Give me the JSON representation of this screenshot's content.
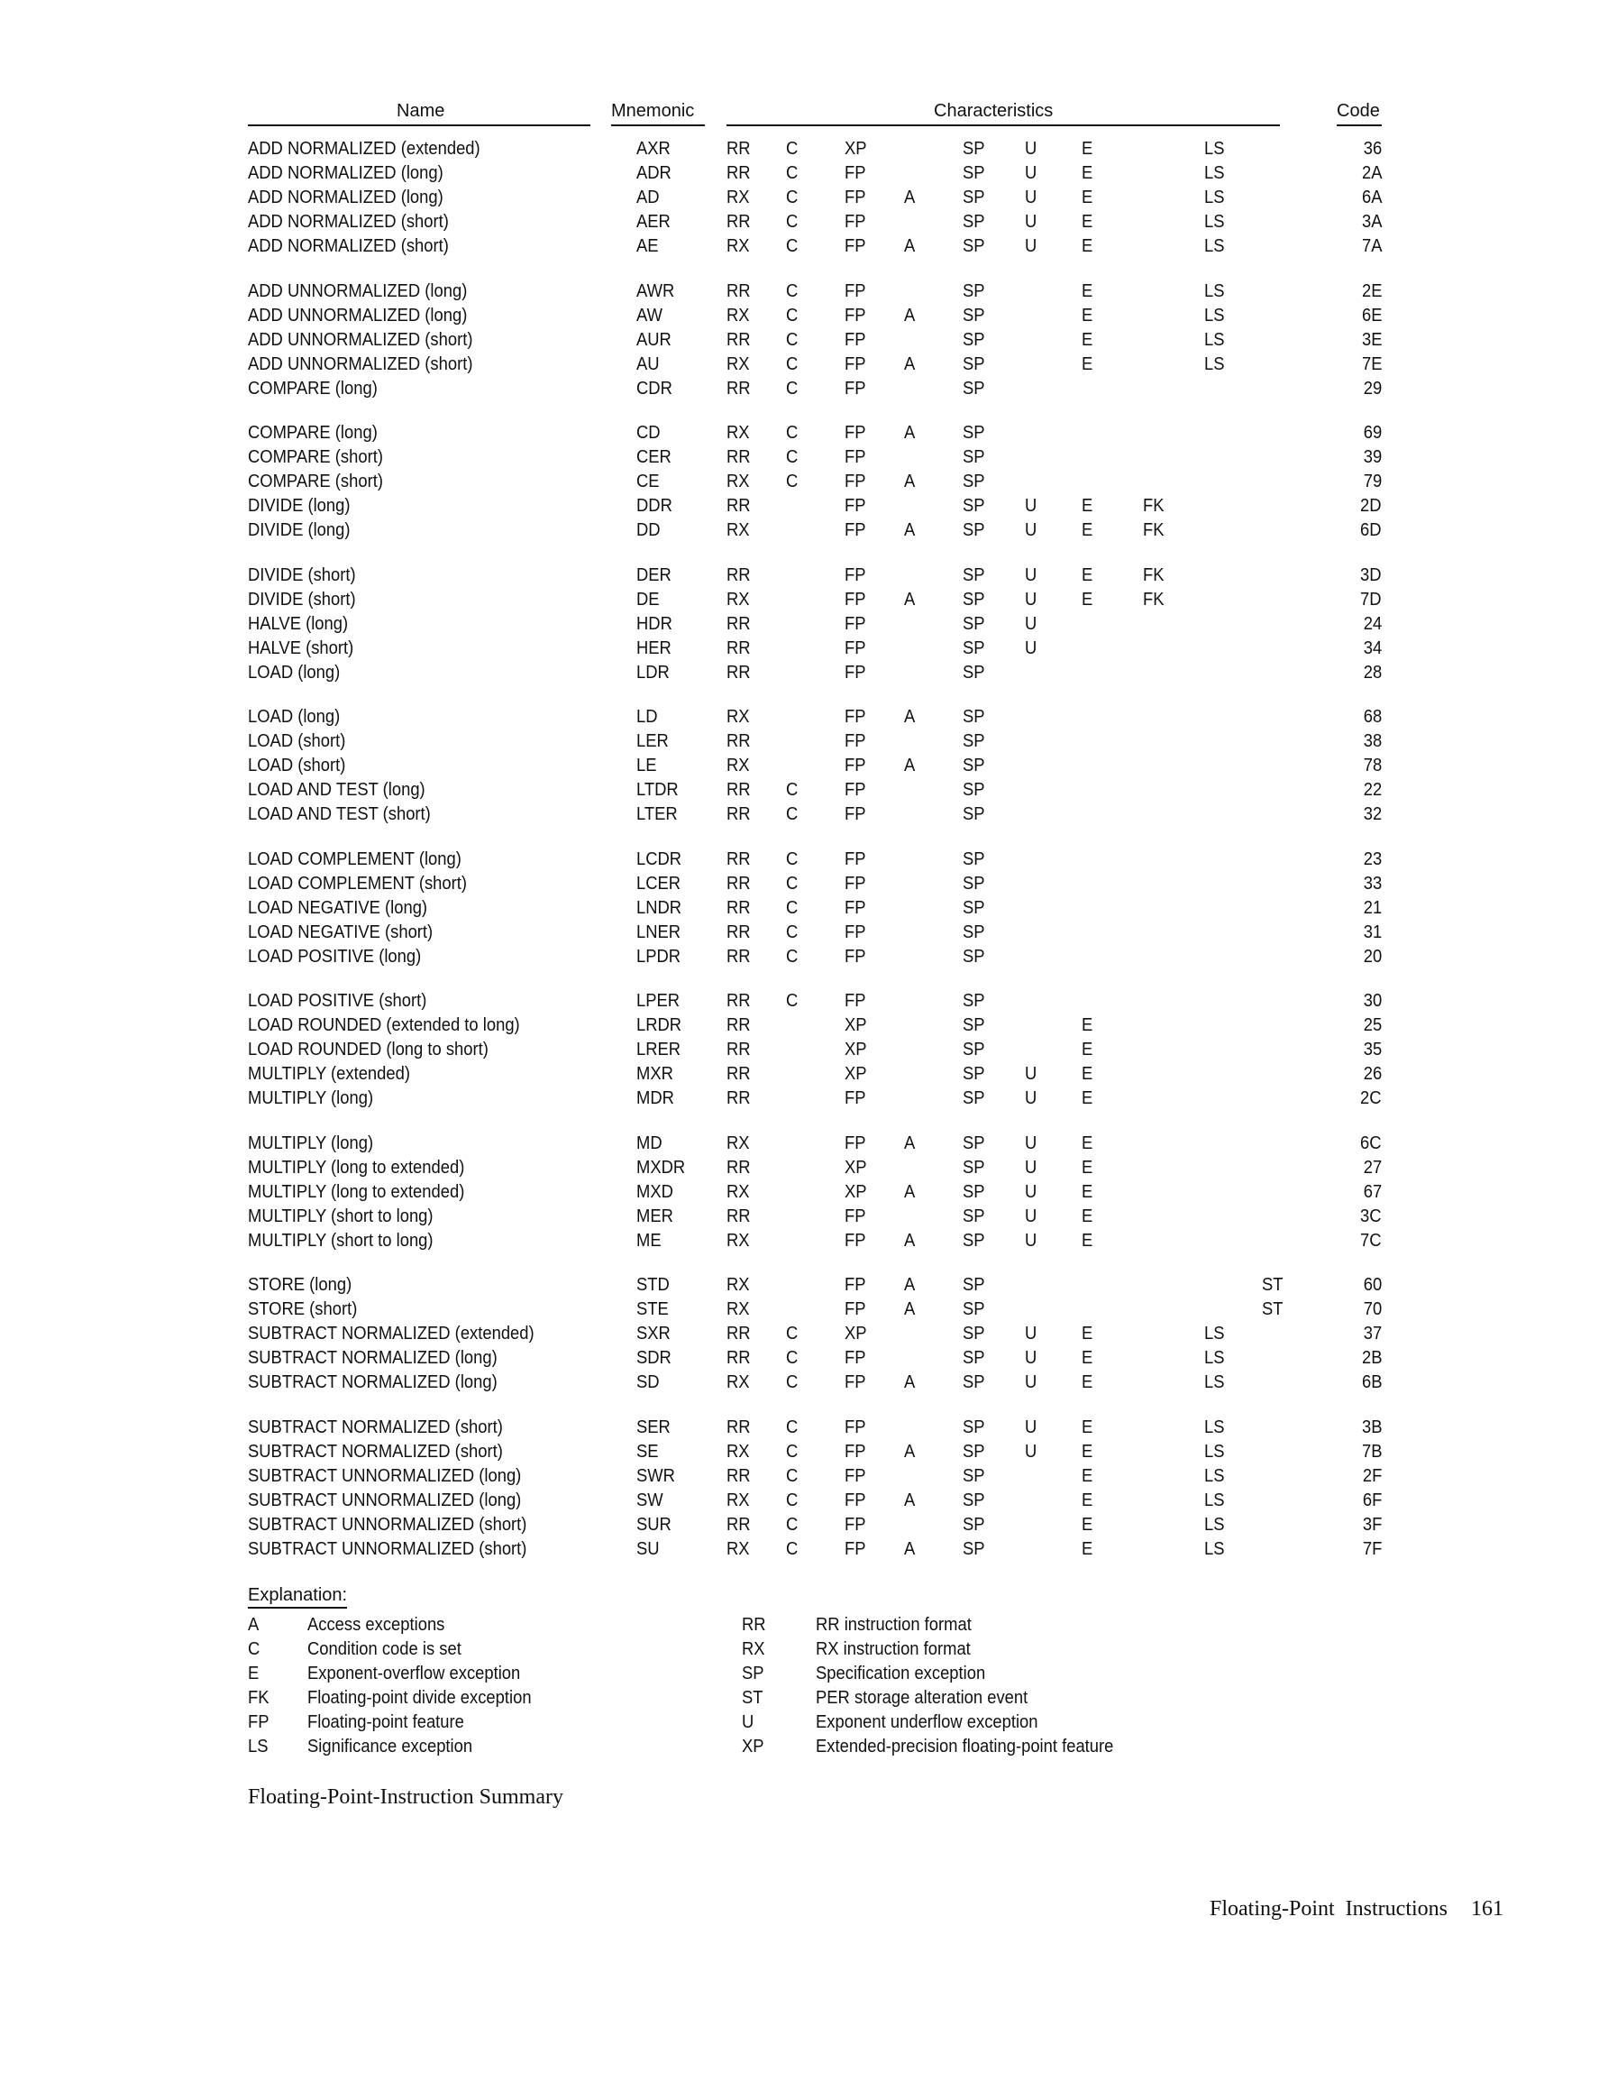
{
  "header": {
    "name": "Name",
    "mnemonic": "Mnemonic",
    "characteristics": "Characteristics",
    "code": "Code"
  },
  "groups": [
    [
      [
        "ADD NORMALIZED (extended)",
        "AXR",
        "RR",
        "C",
        "XP",
        "",
        "SP",
        "U",
        "E",
        "",
        "LS",
        "",
        "36"
      ],
      [
        "ADD NORMALIZED (long)",
        "ADR",
        "RR",
        "C",
        "FP",
        "",
        "SP",
        "U",
        "E",
        "",
        "LS",
        "",
        "2A"
      ],
      [
        "ADD NORMALIZED (long)",
        "AD",
        "RX",
        "C",
        "FP",
        "A",
        "SP",
        "U",
        "E",
        "",
        "LS",
        "",
        "6A"
      ],
      [
        "ADD NORMALIZED (short)",
        "AER",
        "RR",
        "C",
        "FP",
        "",
        "SP",
        "U",
        "E",
        "",
        "LS",
        "",
        "3A"
      ],
      [
        "ADD NORMALIZED (short)",
        "AE",
        "RX",
        "C",
        "FP",
        "A",
        "SP",
        "U",
        "E",
        "",
        "LS",
        "",
        "7A"
      ]
    ],
    [
      [
        "ADD UNNORMALIZED (long)",
        "AWR",
        "RR",
        "C",
        "FP",
        "",
        "SP",
        "",
        "E",
        "",
        "LS",
        "",
        "2E"
      ],
      [
        "ADD UNNORMALIZED (long)",
        "AW",
        "RX",
        "C",
        "FP",
        "A",
        "SP",
        "",
        "E",
        "",
        "LS",
        "",
        "6E"
      ],
      [
        "ADD UNNORMALIZED (short)",
        "AUR",
        "RR",
        "C",
        "FP",
        "",
        "SP",
        "",
        "E",
        "",
        "LS",
        "",
        "3E"
      ],
      [
        "ADD UNNORMALIZED (short)",
        "AU",
        "RX",
        "C",
        "FP",
        "A",
        "SP",
        "",
        "E",
        "",
        "LS",
        "",
        "7E"
      ],
      [
        "COMPARE (long)",
        "CDR",
        "RR",
        "C",
        "FP",
        "",
        "SP",
        "",
        "",
        "",
        "",
        "",
        "29"
      ]
    ],
    [
      [
        "COMPARE (long)",
        "CD",
        "RX",
        "C",
        "FP",
        "A",
        "SP",
        "",
        "",
        "",
        "",
        "",
        "69"
      ],
      [
        "COMPARE (short)",
        "CER",
        "RR",
        "C",
        "FP",
        "",
        "SP",
        "",
        "",
        "",
        "",
        "",
        "39"
      ],
      [
        "COMPARE (short)",
        "CE",
        "RX",
        "C",
        "FP",
        "A",
        "SP",
        "",
        "",
        "",
        "",
        "",
        "79"
      ],
      [
        "DIVIDE (long)",
        "DDR",
        "RR",
        "",
        "FP",
        "",
        "SP",
        "U",
        "E",
        "FK",
        "",
        "",
        "2D"
      ],
      [
        "DIVIDE (long)",
        "DD",
        "RX",
        "",
        "FP",
        "A",
        "SP",
        "U",
        "E",
        "FK",
        "",
        "",
        "6D"
      ]
    ],
    [
      [
        "DIVIDE (short)",
        "DER",
        "RR",
        "",
        "FP",
        "",
        "SP",
        "U",
        "E",
        "FK",
        "",
        "",
        "3D"
      ],
      [
        "DIVIDE (short)",
        "DE",
        "RX",
        "",
        "FP",
        "A",
        "SP",
        "U",
        "E",
        "FK",
        "",
        "",
        "7D"
      ],
      [
        "HALVE (long)",
        "HDR",
        "RR",
        "",
        "FP",
        "",
        "SP",
        "U",
        "",
        "",
        "",
        "",
        "24"
      ],
      [
        "HALVE (short)",
        "HER",
        "RR",
        "",
        "FP",
        "",
        "SP",
        "U",
        "",
        "",
        "",
        "",
        "34"
      ],
      [
        "LOAD (long)",
        "LDR",
        "RR",
        "",
        "FP",
        "",
        "SP",
        "",
        "",
        "",
        "",
        "",
        "28"
      ]
    ],
    [
      [
        "LOAD (long)",
        "LD",
        "RX",
        "",
        "FP",
        "A",
        "SP",
        "",
        "",
        "",
        "",
        "",
        "68"
      ],
      [
        "LOAD (short)",
        "LER",
        "RR",
        "",
        "FP",
        "",
        "SP",
        "",
        "",
        "",
        "",
        "",
        "38"
      ],
      [
        "LOAD (short)",
        "LE",
        "RX",
        "",
        "FP",
        "A",
        "SP",
        "",
        "",
        "",
        "",
        "",
        "78"
      ],
      [
        "LOAD AND TEST (long)",
        "LTDR",
        "RR",
        "C",
        "FP",
        "",
        "SP",
        "",
        "",
        "",
        "",
        "",
        "22"
      ],
      [
        "LOAD AND TEST (short)",
        "LTER",
        "RR",
        "C",
        "FP",
        "",
        "SP",
        "",
        "",
        "",
        "",
        "",
        "32"
      ]
    ],
    [
      [
        "LOAD COMPLEMENT (long)",
        "LCDR",
        "RR",
        "C",
        "FP",
        "",
        "SP",
        "",
        "",
        "",
        "",
        "",
        "23"
      ],
      [
        "LOAD COMPLEMENT (short)",
        "LCER",
        "RR",
        "C",
        "FP",
        "",
        "SP",
        "",
        "",
        "",
        "",
        "",
        "33"
      ],
      [
        "LOAD NEGATIVE (long)",
        "LNDR",
        "RR",
        "C",
        "FP",
        "",
        "SP",
        "",
        "",
        "",
        "",
        "",
        "21"
      ],
      [
        "LOAD NEGATIVE (short)",
        "LNER",
        "RR",
        "C",
        "FP",
        "",
        "SP",
        "",
        "",
        "",
        "",
        "",
        "31"
      ],
      [
        "LOAD POSITIVE (long)",
        "LPDR",
        "RR",
        "C",
        "FP",
        "",
        "SP",
        "",
        "",
        "",
        "",
        "",
        "20"
      ]
    ],
    [
      [
        "LOAD POSITIVE (short)",
        "LPER",
        "RR",
        "C",
        "FP",
        "",
        "SP",
        "",
        "",
        "",
        "",
        "",
        "30"
      ],
      [
        "LOAD ROUNDED (extended to long)",
        "LRDR",
        "RR",
        "",
        "XP",
        "",
        "SP",
        "",
        "E",
        "",
        "",
        "",
        "25"
      ],
      [
        "LOAD ROUNDED (long to short)",
        "LRER",
        "RR",
        "",
        "XP",
        "",
        "SP",
        "",
        "E",
        "",
        "",
        "",
        "35"
      ],
      [
        "MULTIPLY (extended)",
        "MXR",
        "RR",
        "",
        "XP",
        "",
        "SP",
        "U",
        "E",
        "",
        "",
        "",
        "26"
      ],
      [
        "MULTIPLY (long)",
        "MDR",
        "RR",
        "",
        "FP",
        "",
        "SP",
        "U",
        "E",
        "",
        "",
        "",
        "2C"
      ]
    ],
    [
      [
        "MULTIPLY (long)",
        "MD",
        "RX",
        "",
        "FP",
        "A",
        "SP",
        "U",
        "E",
        "",
        "",
        "",
        "6C"
      ],
      [
        "MULTIPLY (long to extended)",
        "MXDR",
        "RR",
        "",
        "XP",
        "",
        "SP",
        "U",
        "E",
        "",
        "",
        "",
        "27"
      ],
      [
        "MULTIPLY (long to extended)",
        "MXD",
        "RX",
        "",
        "XP",
        "A",
        "SP",
        "U",
        "E",
        "",
        "",
        "",
        "67"
      ],
      [
        "MULTIPLY (short to long)",
        "MER",
        "RR",
        "",
        "FP",
        "",
        "SP",
        "U",
        "E",
        "",
        "",
        "",
        "3C"
      ],
      [
        "MULTIPLY (short to long)",
        "ME",
        "RX",
        "",
        "FP",
        "A",
        "SP",
        "U",
        "E",
        "",
        "",
        "",
        "7C"
      ]
    ],
    [
      [
        "STORE (long)",
        "STD",
        "RX",
        "",
        "FP",
        "A",
        "SP",
        "",
        "",
        "",
        "",
        "ST",
        "60"
      ],
      [
        "STORE (short)",
        "STE",
        "RX",
        "",
        "FP",
        "A",
        "SP",
        "",
        "",
        "",
        "",
        "ST",
        "70"
      ],
      [
        "SUBTRACT NORMALIZED (extended)",
        "SXR",
        "RR",
        "C",
        "XP",
        "",
        "SP",
        "U",
        "E",
        "",
        "LS",
        "",
        "37"
      ],
      [
        "SUBTRACT NORMALIZED (long)",
        "SDR",
        "RR",
        "C",
        "FP",
        "",
        "SP",
        "U",
        "E",
        "",
        "LS",
        "",
        "2B"
      ],
      [
        "SUBTRACT NORMALIZED (long)",
        "SD",
        "RX",
        "C",
        "FP",
        "A",
        "SP",
        "U",
        "E",
        "",
        "LS",
        "",
        "6B"
      ]
    ],
    [
      [
        "SUBTRACT NORMALIZED (short)",
        "SER",
        "RR",
        "C",
        "FP",
        "",
        "SP",
        "U",
        "E",
        "",
        "LS",
        "",
        "3B"
      ],
      [
        "SUBTRACT NORMALIZED (short)",
        "SE",
        "RX",
        "C",
        "FP",
        "A",
        "SP",
        "U",
        "E",
        "",
        "LS",
        "",
        "7B"
      ],
      [
        "SUBTRACT UNNORMALIZED (long)",
        "SWR",
        "RR",
        "C",
        "FP",
        "",
        "SP",
        "",
        "E",
        "",
        "LS",
        "",
        "2F"
      ],
      [
        "SUBTRACT UNNORMALIZED (long)",
        "SW",
        "RX",
        "C",
        "FP",
        "A",
        "SP",
        "",
        "E",
        "",
        "LS",
        "",
        "6F"
      ],
      [
        "SUBTRACT UNNORMALIZED (short)",
        "SUR",
        "RR",
        "C",
        "FP",
        "",
        "SP",
        "",
        "E",
        "",
        "LS",
        "",
        "3F"
      ],
      [
        "SUBTRACT UNNORMALIZED (short)",
        "SU",
        "RX",
        "C",
        "FP",
        "A",
        "SP",
        "",
        "E",
        "",
        "LS",
        "",
        "7F"
      ]
    ]
  ],
  "explanation": {
    "title": "Explanation:",
    "left": [
      {
        "code": "A",
        "text": "Access exceptions"
      },
      {
        "code": "C",
        "text": "Condition code is set"
      },
      {
        "code": "E",
        "text": "Exponent-overflow exception"
      },
      {
        "code": "FK",
        "text": "Floating-point divide exception"
      },
      {
        "code": "FP",
        "text": "Floating-point feature"
      },
      {
        "code": "LS",
        "text": "Significance exception"
      }
    ],
    "right": [
      {
        "code": "RR",
        "text": "RR instruction format"
      },
      {
        "code": "RX",
        "text": "RX instruction format"
      },
      {
        "code": "SP",
        "text": "Specification exception"
      },
      {
        "code": "ST",
        "text": "PER storage alteration event"
      },
      {
        "code": "U",
        "text": "Exponent underflow exception"
      },
      {
        "code": "XP",
        "text": "Extended-precision floating-point feature"
      }
    ]
  },
  "caption": "Floating-Point-Instruction Summary",
  "footer": {
    "section": "Floating-Point  Instructions",
    "page": "161"
  }
}
